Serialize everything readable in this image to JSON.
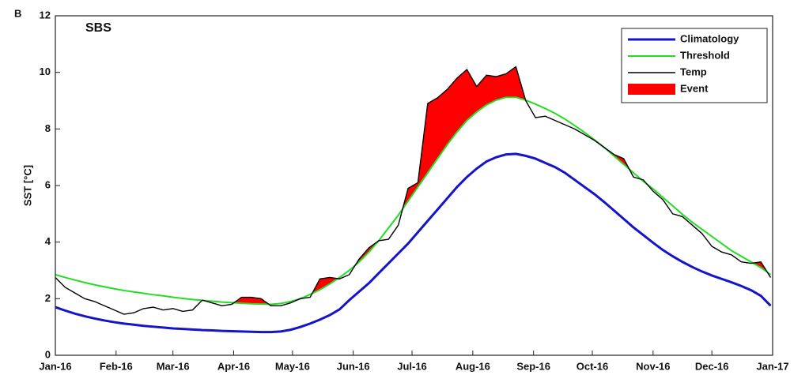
{
  "chart_data": {
    "type": "line",
    "panel_label": "B",
    "title": "SBS",
    "y_label": "SST [°C]",
    "x": [
      0,
      5,
      10,
      15,
      20,
      25,
      30,
      35,
      40,
      45,
      50,
      55,
      60,
      65,
      70,
      75,
      80,
      85,
      90,
      95,
      100,
      105,
      110,
      115,
      120,
      125,
      130,
      135,
      140,
      145,
      150,
      155,
      160,
      165,
      170,
      175,
      180,
      185,
      190,
      195,
      200,
      205,
      210,
      215,
      220,
      225,
      230,
      235,
      240,
      245,
      250,
      255,
      260,
      265,
      270,
      275,
      280,
      285,
      290,
      295,
      300,
      305,
      310,
      315,
      320,
      325,
      330,
      335,
      340,
      345,
      350,
      355,
      360,
      365
    ],
    "xlim": [
      0,
      366
    ],
    "xticks": [
      {
        "value": 0,
        "label": "Jan-16"
      },
      {
        "value": 31,
        "label": "Feb-16"
      },
      {
        "value": 60,
        "label": "Mar-16"
      },
      {
        "value": 91,
        "label": "Apr-16"
      },
      {
        "value": 121,
        "label": "May-16"
      },
      {
        "value": 152,
        "label": "Jun-16"
      },
      {
        "value": 182,
        "label": "Jul-16"
      },
      {
        "value": 213,
        "label": "Aug-16"
      },
      {
        "value": 244,
        "label": "Sep-16"
      },
      {
        "value": 274,
        "label": "Oct-16"
      },
      {
        "value": 305,
        "label": "Nov-16"
      },
      {
        "value": 335,
        "label": "Dec-16"
      },
      {
        "value": 366,
        "label": "Jan-17"
      }
    ],
    "ylim": [
      0,
      12
    ],
    "yticks": [
      0,
      2,
      4,
      6,
      8,
      10,
      12
    ],
    "grid": false,
    "legend": "upper right",
    "series": [
      {
        "name": "Climatology",
        "color": "#1414c8",
        "values": [
          1.7,
          1.58,
          1.47,
          1.38,
          1.3,
          1.23,
          1.17,
          1.12,
          1.08,
          1.04,
          1.01,
          0.98,
          0.95,
          0.93,
          0.91,
          0.89,
          0.88,
          0.86,
          0.85,
          0.84,
          0.83,
          0.82,
          0.82,
          0.84,
          0.9,
          1.0,
          1.12,
          1.26,
          1.42,
          1.62,
          1.95,
          2.25,
          2.55,
          2.9,
          3.25,
          3.6,
          3.95,
          4.35,
          4.75,
          5.15,
          5.55,
          5.95,
          6.3,
          6.6,
          6.85,
          7.0,
          7.1,
          7.12,
          7.05,
          6.95,
          6.8,
          6.65,
          6.45,
          6.2,
          5.95,
          5.7,
          5.42,
          5.12,
          4.82,
          4.52,
          4.25,
          3.98,
          3.72,
          3.5,
          3.3,
          3.12,
          2.96,
          2.82,
          2.7,
          2.58,
          2.45,
          2.3,
          2.1,
          1.75
        ]
      },
      {
        "name": "Threshold",
        "color": "#22dd22",
        "values": [
          2.85,
          2.75,
          2.66,
          2.57,
          2.49,
          2.42,
          2.35,
          2.29,
          2.24,
          2.19,
          2.14,
          2.1,
          2.05,
          2.01,
          1.97,
          1.94,
          1.91,
          1.88,
          1.86,
          1.84,
          1.82,
          1.81,
          1.8,
          1.83,
          1.9,
          2.0,
          2.15,
          2.32,
          2.52,
          2.75,
          3.0,
          3.3,
          3.65,
          4.05,
          4.5,
          4.95,
          5.45,
          5.95,
          6.45,
          6.95,
          7.45,
          7.9,
          8.3,
          8.6,
          8.85,
          9.02,
          9.12,
          9.12,
          9.02,
          8.88,
          8.72,
          8.55,
          8.35,
          8.12,
          7.88,
          7.62,
          7.35,
          7.05,
          6.75,
          6.45,
          6.15,
          5.88,
          5.58,
          5.28,
          4.98,
          4.7,
          4.45,
          4.2,
          3.95,
          3.7,
          3.5,
          3.3,
          3.1,
          2.85
        ]
      },
      {
        "name": "Temp",
        "color": "#000000",
        "values": [
          2.75,
          2.4,
          2.2,
          2.0,
          1.9,
          1.75,
          1.6,
          1.45,
          1.5,
          1.65,
          1.7,
          1.6,
          1.65,
          1.55,
          1.6,
          1.95,
          1.85,
          1.75,
          1.8,
          2.05,
          2.05,
          2.0,
          1.75,
          1.75,
          1.85,
          2.0,
          2.05,
          2.7,
          2.75,
          2.7,
          2.85,
          3.4,
          3.8,
          4.05,
          4.1,
          4.6,
          5.9,
          6.1,
          8.9,
          9.1,
          9.4,
          9.8,
          10.1,
          9.5,
          9.9,
          9.85,
          9.95,
          10.2,
          9.0,
          8.4,
          8.45,
          8.3,
          8.15,
          8.0,
          7.8,
          7.6,
          7.35,
          7.1,
          6.95,
          6.3,
          6.2,
          5.8,
          5.5,
          5.0,
          4.9,
          4.6,
          4.3,
          3.85,
          3.65,
          3.55,
          3.3,
          3.25,
          3.3,
          2.75
        ]
      },
      {
        "name": "Event",
        "color": "#ff0000"
      }
    ]
  }
}
